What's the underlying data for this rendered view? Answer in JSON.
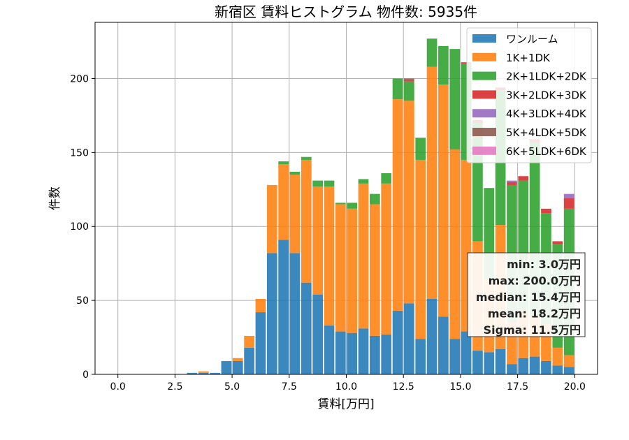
{
  "chart_data": {
    "type": "bar",
    "title": "新宿区 賃料ヒストグラム 物件数: 5935件",
    "xlabel": "賃料[万円]",
    "ylabel": "件数",
    "xlim": [
      -1.0,
      21.0
    ],
    "ylim": [
      0,
      238
    ],
    "xticks": [
      0.0,
      2.5,
      5.0,
      7.5,
      10.0,
      12.5,
      15.0,
      17.5,
      20.0
    ],
    "xtick_labels": [
      "0.0",
      "2.5",
      "5.0",
      "7.5",
      "10.0",
      "12.5",
      "15.0",
      "17.5",
      "20.0"
    ],
    "yticks": [
      0,
      50,
      100,
      150,
      200
    ],
    "ytick_labels": [
      "0",
      "50",
      "100",
      "150",
      "200"
    ],
    "grid": true,
    "legend_position": "top-right",
    "bin_width": 0.5,
    "bin_starts": [
      3.0,
      3.5,
      4.0,
      4.5,
      5.0,
      5.5,
      6.0,
      6.5,
      7.0,
      7.5,
      8.0,
      8.5,
      9.0,
      9.5,
      10.0,
      10.5,
      11.0,
      11.5,
      12.0,
      12.5,
      13.0,
      13.5,
      14.0,
      14.5,
      15.0,
      15.5,
      16.0,
      16.5,
      17.0,
      17.5,
      18.0,
      18.5,
      19.0,
      19.5
    ],
    "series": [
      {
        "name": "ワンルーム",
        "color": "#1f77b4",
        "values": [
          1,
          1,
          1,
          9,
          9,
          18,
          42,
          82,
          91,
          82,
          62,
          54,
          33,
          29,
          28,
          31,
          26,
          27,
          43,
          48,
          24,
          51,
          39,
          24,
          29,
          16,
          15,
          17,
          7,
          11,
          12,
          9,
          6,
          5
        ]
      },
      {
        "name": "1K+1DK",
        "color": "#ff7f0e",
        "values": [
          0,
          1,
          0,
          0,
          2,
          8,
          9,
          46,
          51,
          53,
          83,
          73,
          94,
          86,
          84,
          98,
          89,
          102,
          143,
          137,
          121,
          157,
          157,
          128,
          116,
          74,
          49,
          84,
          28,
          32,
          28,
          25,
          12,
          8
        ]
      },
      {
        "name": "2K+1LDK+2DK",
        "color": "#2ca02c",
        "values": [
          0,
          0,
          0,
          0,
          0,
          0,
          0,
          0,
          2,
          2,
          2,
          4,
          4,
          1,
          4,
          3,
          7,
          7,
          14,
          13,
          15,
          19,
          26,
          68,
          65,
          80,
          62,
          91,
          93,
          88,
          117,
          75,
          70,
          99
        ]
      },
      {
        "name": "3K+2LDK+3DK",
        "color": "#d62728",
        "values": [
          0,
          0,
          0,
          0,
          0,
          0,
          0,
          0,
          0,
          0,
          0,
          0,
          0,
          0,
          0,
          0,
          0,
          0,
          0,
          1,
          0,
          0,
          0,
          0,
          1,
          2,
          0,
          2,
          2,
          3,
          2,
          3,
          2,
          7
        ]
      },
      {
        "name": "4K+3LDK+4DK",
        "color": "#9467bd",
        "values": [
          0,
          0,
          0,
          0,
          0,
          0,
          0,
          0,
          0,
          0,
          0,
          0,
          0,
          0,
          0,
          0,
          0,
          0,
          0,
          0,
          0,
          0,
          0,
          0,
          0,
          0,
          0,
          0,
          1,
          0,
          0,
          0,
          0,
          3
        ]
      },
      {
        "name": "5K+4LDK+5DK",
        "color": "#8c564b",
        "values": [
          0,
          0,
          0,
          0,
          0,
          0,
          0,
          0,
          0,
          0,
          0,
          0,
          0,
          0,
          0,
          0,
          0,
          0,
          0,
          1,
          0,
          0,
          0,
          0,
          0,
          0,
          0,
          0,
          0,
          0,
          0,
          0,
          0,
          0
        ]
      },
      {
        "name": "6K+5LDK+6DK",
        "color": "#e377c2",
        "values": [
          0,
          0,
          0,
          0,
          0,
          0,
          0,
          0,
          0,
          0,
          0,
          0,
          0,
          0,
          0,
          0,
          0,
          0,
          0,
          0,
          0,
          0,
          0,
          0,
          0,
          0,
          0,
          0,
          0,
          0,
          0,
          0,
          0,
          0
        ]
      }
    ],
    "stats": [
      "min: 3.0万円",
      "max: 200.0万円",
      "median: 15.4万円",
      "mean: 18.2万円",
      "Sigma: 11.5万円"
    ]
  }
}
